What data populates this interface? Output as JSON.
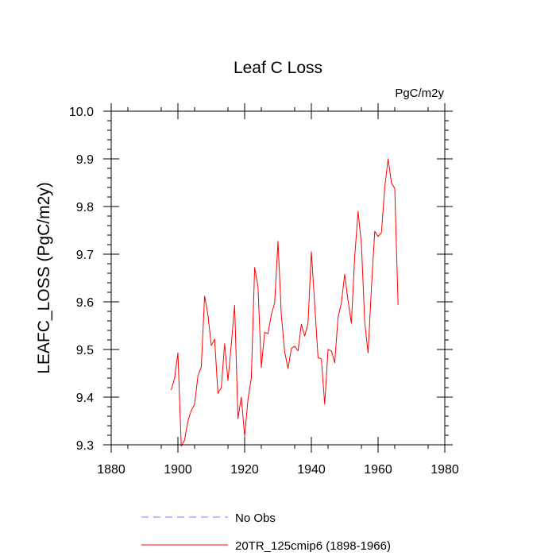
{
  "chart_data": {
    "type": "line",
    "title": "Leaf C Loss",
    "units": "PgC/m2y",
    "xlabel": "",
    "ylabel": "LEAFC_LOSS  (PgC/m2y)",
    "xlim": [
      1880,
      1980
    ],
    "ylim": [
      9.3,
      10.0
    ],
    "x_ticks": [
      1880,
      1900,
      1920,
      1940,
      1960,
      1980
    ],
    "x_tick_labels": [
      "1880",
      "1900",
      "1920",
      "1940",
      "1960",
      "1980"
    ],
    "y_ticks": [
      9.3,
      9.4,
      9.5,
      9.6,
      9.7,
      9.8,
      9.9,
      10.0
    ],
    "y_tick_labels": [
      "9.3",
      "9.4",
      "9.5",
      "9.6",
      "9.7",
      "9.8",
      "9.9",
      "10.0"
    ],
    "legend": [
      {
        "label": "No Obs",
        "color": "#7f7fff",
        "style": "dashed"
      },
      {
        "label": "20TR_125cmip6 (1898-1966)",
        "color": "#ff0000",
        "style": "solid"
      }
    ],
    "series": [
      {
        "name": "20TR_125cmip6 (1898-1966)",
        "color": "#ff0000",
        "x": [
          1898,
          1899,
          1900,
          1901,
          1902,
          1903,
          1904,
          1905,
          1906,
          1907,
          1908,
          1909,
          1910,
          1911,
          1912,
          1913,
          1914,
          1915,
          1916,
          1917,
          1918,
          1919,
          1920,
          1921,
          1922,
          1923,
          1924,
          1925,
          1926,
          1927,
          1928,
          1929,
          1930,
          1931,
          1932,
          1933,
          1934,
          1935,
          1936,
          1937,
          1938,
          1939,
          1940,
          1941,
          1942,
          1943,
          1944,
          1945,
          1946,
          1947,
          1948,
          1949,
          1950,
          1951,
          1952,
          1953,
          1954,
          1955,
          1956,
          1957,
          1958,
          1959,
          1960,
          1961,
          1962,
          1963,
          1964,
          1965,
          1966
        ],
        "values": [
          9.415,
          9.44,
          9.493,
          9.297,
          9.31,
          9.35,
          9.372,
          9.385,
          9.445,
          9.463,
          9.612,
          9.573,
          9.508,
          9.522,
          9.408,
          9.42,
          9.512,
          9.435,
          9.51,
          9.593,
          9.355,
          9.4,
          9.318,
          9.395,
          9.44,
          9.672,
          9.632,
          9.462,
          9.536,
          9.533,
          9.573,
          9.598,
          9.727,
          9.572,
          9.495,
          9.46,
          9.502,
          9.507,
          9.497,
          9.553,
          9.528,
          9.555,
          9.705,
          9.595,
          9.483,
          9.48,
          9.385,
          9.5,
          9.497,
          9.472,
          9.568,
          9.598,
          9.658,
          9.602,
          9.555,
          9.695,
          9.79,
          9.722,
          9.557,
          9.493,
          9.628,
          9.748,
          9.737,
          9.745,
          9.84,
          9.9,
          9.85,
          9.838,
          9.593
        ]
      }
    ]
  }
}
